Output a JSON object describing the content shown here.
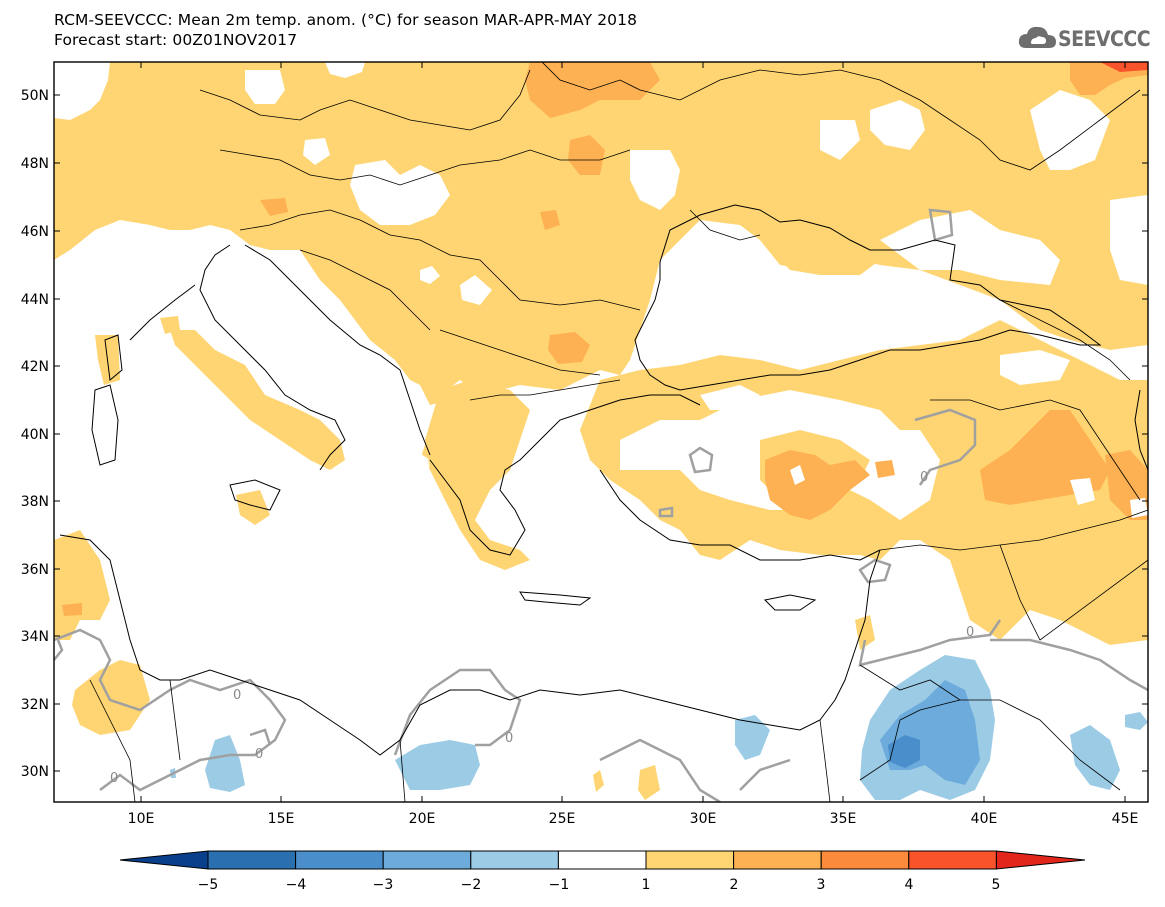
{
  "header": {
    "title_line1": "RCM-SEEVCCC: Mean 2m temp. anom. (°C) for season MAR-APR-MAY 2018",
    "title_line2": "Forecast start: 00Z01NOV2017",
    "logo_text": "SEEVCCC"
  },
  "map": {
    "lat_labels": [
      "50N",
      "48N",
      "46N",
      "44N",
      "42N",
      "40N",
      "38N",
      "36N",
      "34N",
      "32N",
      "30N"
    ],
    "lon_labels": [
      "10E",
      "15E",
      "20E",
      "25E",
      "30E",
      "35E",
      "40E",
      "45E"
    ],
    "contour_label": "0"
  },
  "legend": {
    "labels": [
      "−5",
      "−4",
      "−3",
      "−2",
      "−1",
      "1",
      "2",
      "3",
      "4",
      "5"
    ],
    "colors": [
      "#0a3f8c",
      "#2a6fb0",
      "#4a8fcc",
      "#6cabdb",
      "#9ccbe6",
      "#ffffff",
      "#fed572",
      "#fdb152",
      "#fc8a3b",
      "#f8542b",
      "#e3261c"
    ]
  }
}
